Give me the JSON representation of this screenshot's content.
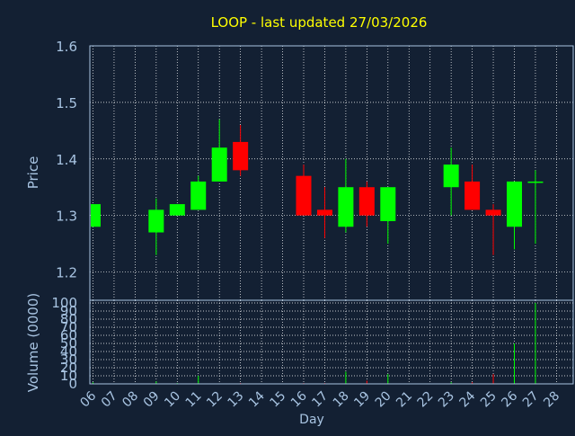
{
  "colors": {
    "background": "#132033",
    "title": "#ffff00",
    "axis_text": "#a8c4e2",
    "grid": "#ffffff",
    "up": "#00ff00",
    "down": "#ff0000"
  },
  "chart_data": [
    {
      "type": "candlestick",
      "title": "LOOP - last updated 27/03/2026",
      "ylabel": "Price",
      "ylim": [
        1.15,
        1.6
      ],
      "yticks": [
        1.2,
        1.3,
        1.4,
        1.5,
        1.6
      ],
      "grid": true,
      "days": [
        "06",
        "07",
        "08",
        "09",
        "10",
        "11",
        "12",
        "13",
        "14",
        "15",
        "16",
        "17",
        "18",
        "19",
        "20",
        "21",
        "22",
        "23",
        "24",
        "25",
        "26",
        "27",
        "28"
      ],
      "candles": [
        {
          "day": "06",
          "open": 1.28,
          "close": 1.32,
          "high": 1.32,
          "low": 1.28
        },
        {
          "day": "09",
          "open": 1.27,
          "close": 1.31,
          "high": 1.33,
          "low": 1.23
        },
        {
          "day": "10",
          "open": 1.3,
          "close": 1.32,
          "high": 1.32,
          "low": 1.3
        },
        {
          "day": "11",
          "open": 1.31,
          "close": 1.36,
          "high": 1.37,
          "low": 1.31
        },
        {
          "day": "12",
          "open": 1.36,
          "close": 1.42,
          "high": 1.47,
          "low": 1.36
        },
        {
          "day": "13",
          "open": 1.43,
          "close": 1.38,
          "high": 1.46,
          "low": 1.37
        },
        {
          "day": "16",
          "open": 1.37,
          "close": 1.3,
          "high": 1.39,
          "low": 1.3
        },
        {
          "day": "17",
          "open": 1.31,
          "close": 1.3,
          "high": 1.35,
          "low": 1.26
        },
        {
          "day": "18",
          "open": 1.28,
          "close": 1.35,
          "high": 1.4,
          "low": 1.27
        },
        {
          "day": "19",
          "open": 1.35,
          "close": 1.3,
          "high": 1.36,
          "low": 1.28
        },
        {
          "day": "20",
          "open": 1.29,
          "close": 1.35,
          "high": 1.35,
          "low": 1.25
        },
        {
          "day": "23",
          "open": 1.35,
          "close": 1.39,
          "high": 1.42,
          "low": 1.3
        },
        {
          "day": "24",
          "open": 1.36,
          "close": 1.31,
          "high": 1.39,
          "low": 1.31
        },
        {
          "day": "25",
          "open": 1.31,
          "close": 1.3,
          "high": 1.32,
          "low": 1.23
        },
        {
          "day": "26",
          "open": 1.28,
          "close": 1.36,
          "high": 1.36,
          "low": 1.24
        },
        {
          "day": "27",
          "open": 1.36,
          "close": 1.36,
          "high": 1.38,
          "low": 1.25
        }
      ]
    },
    {
      "type": "bar",
      "ylabel": "Volume (0000)",
      "xlabel": "Day",
      "ylim": [
        0,
        100
      ],
      "yticks": [
        0,
        10,
        20,
        30,
        40,
        50,
        60,
        70,
        80,
        90,
        100
      ],
      "ytick_labels": [
        "0",
        "10",
        "20",
        "30",
        "40",
        "50",
        "60",
        "70",
        "80",
        "90",
        "100"
      ],
      "grid": true,
      "categories": [
        "06",
        "07",
        "08",
        "09",
        "10",
        "11",
        "12",
        "13",
        "14",
        "15",
        "16",
        "17",
        "18",
        "19",
        "20",
        "21",
        "22",
        "23",
        "24",
        "25",
        "26",
        "27",
        "28"
      ],
      "values": [
        2,
        0,
        0,
        3,
        1,
        10,
        0,
        1,
        0,
        0,
        1,
        1,
        15,
        4,
        12,
        0,
        0,
        2,
        2,
        12,
        50,
        100,
        0
      ],
      "bar_direction": [
        "up",
        "none",
        "none",
        "up",
        "up",
        "up",
        "none",
        "down",
        "none",
        "none",
        "down",
        "down",
        "up",
        "down",
        "up",
        "none",
        "none",
        "up",
        "down",
        "down",
        "up",
        "up",
        "none"
      ]
    }
  ]
}
